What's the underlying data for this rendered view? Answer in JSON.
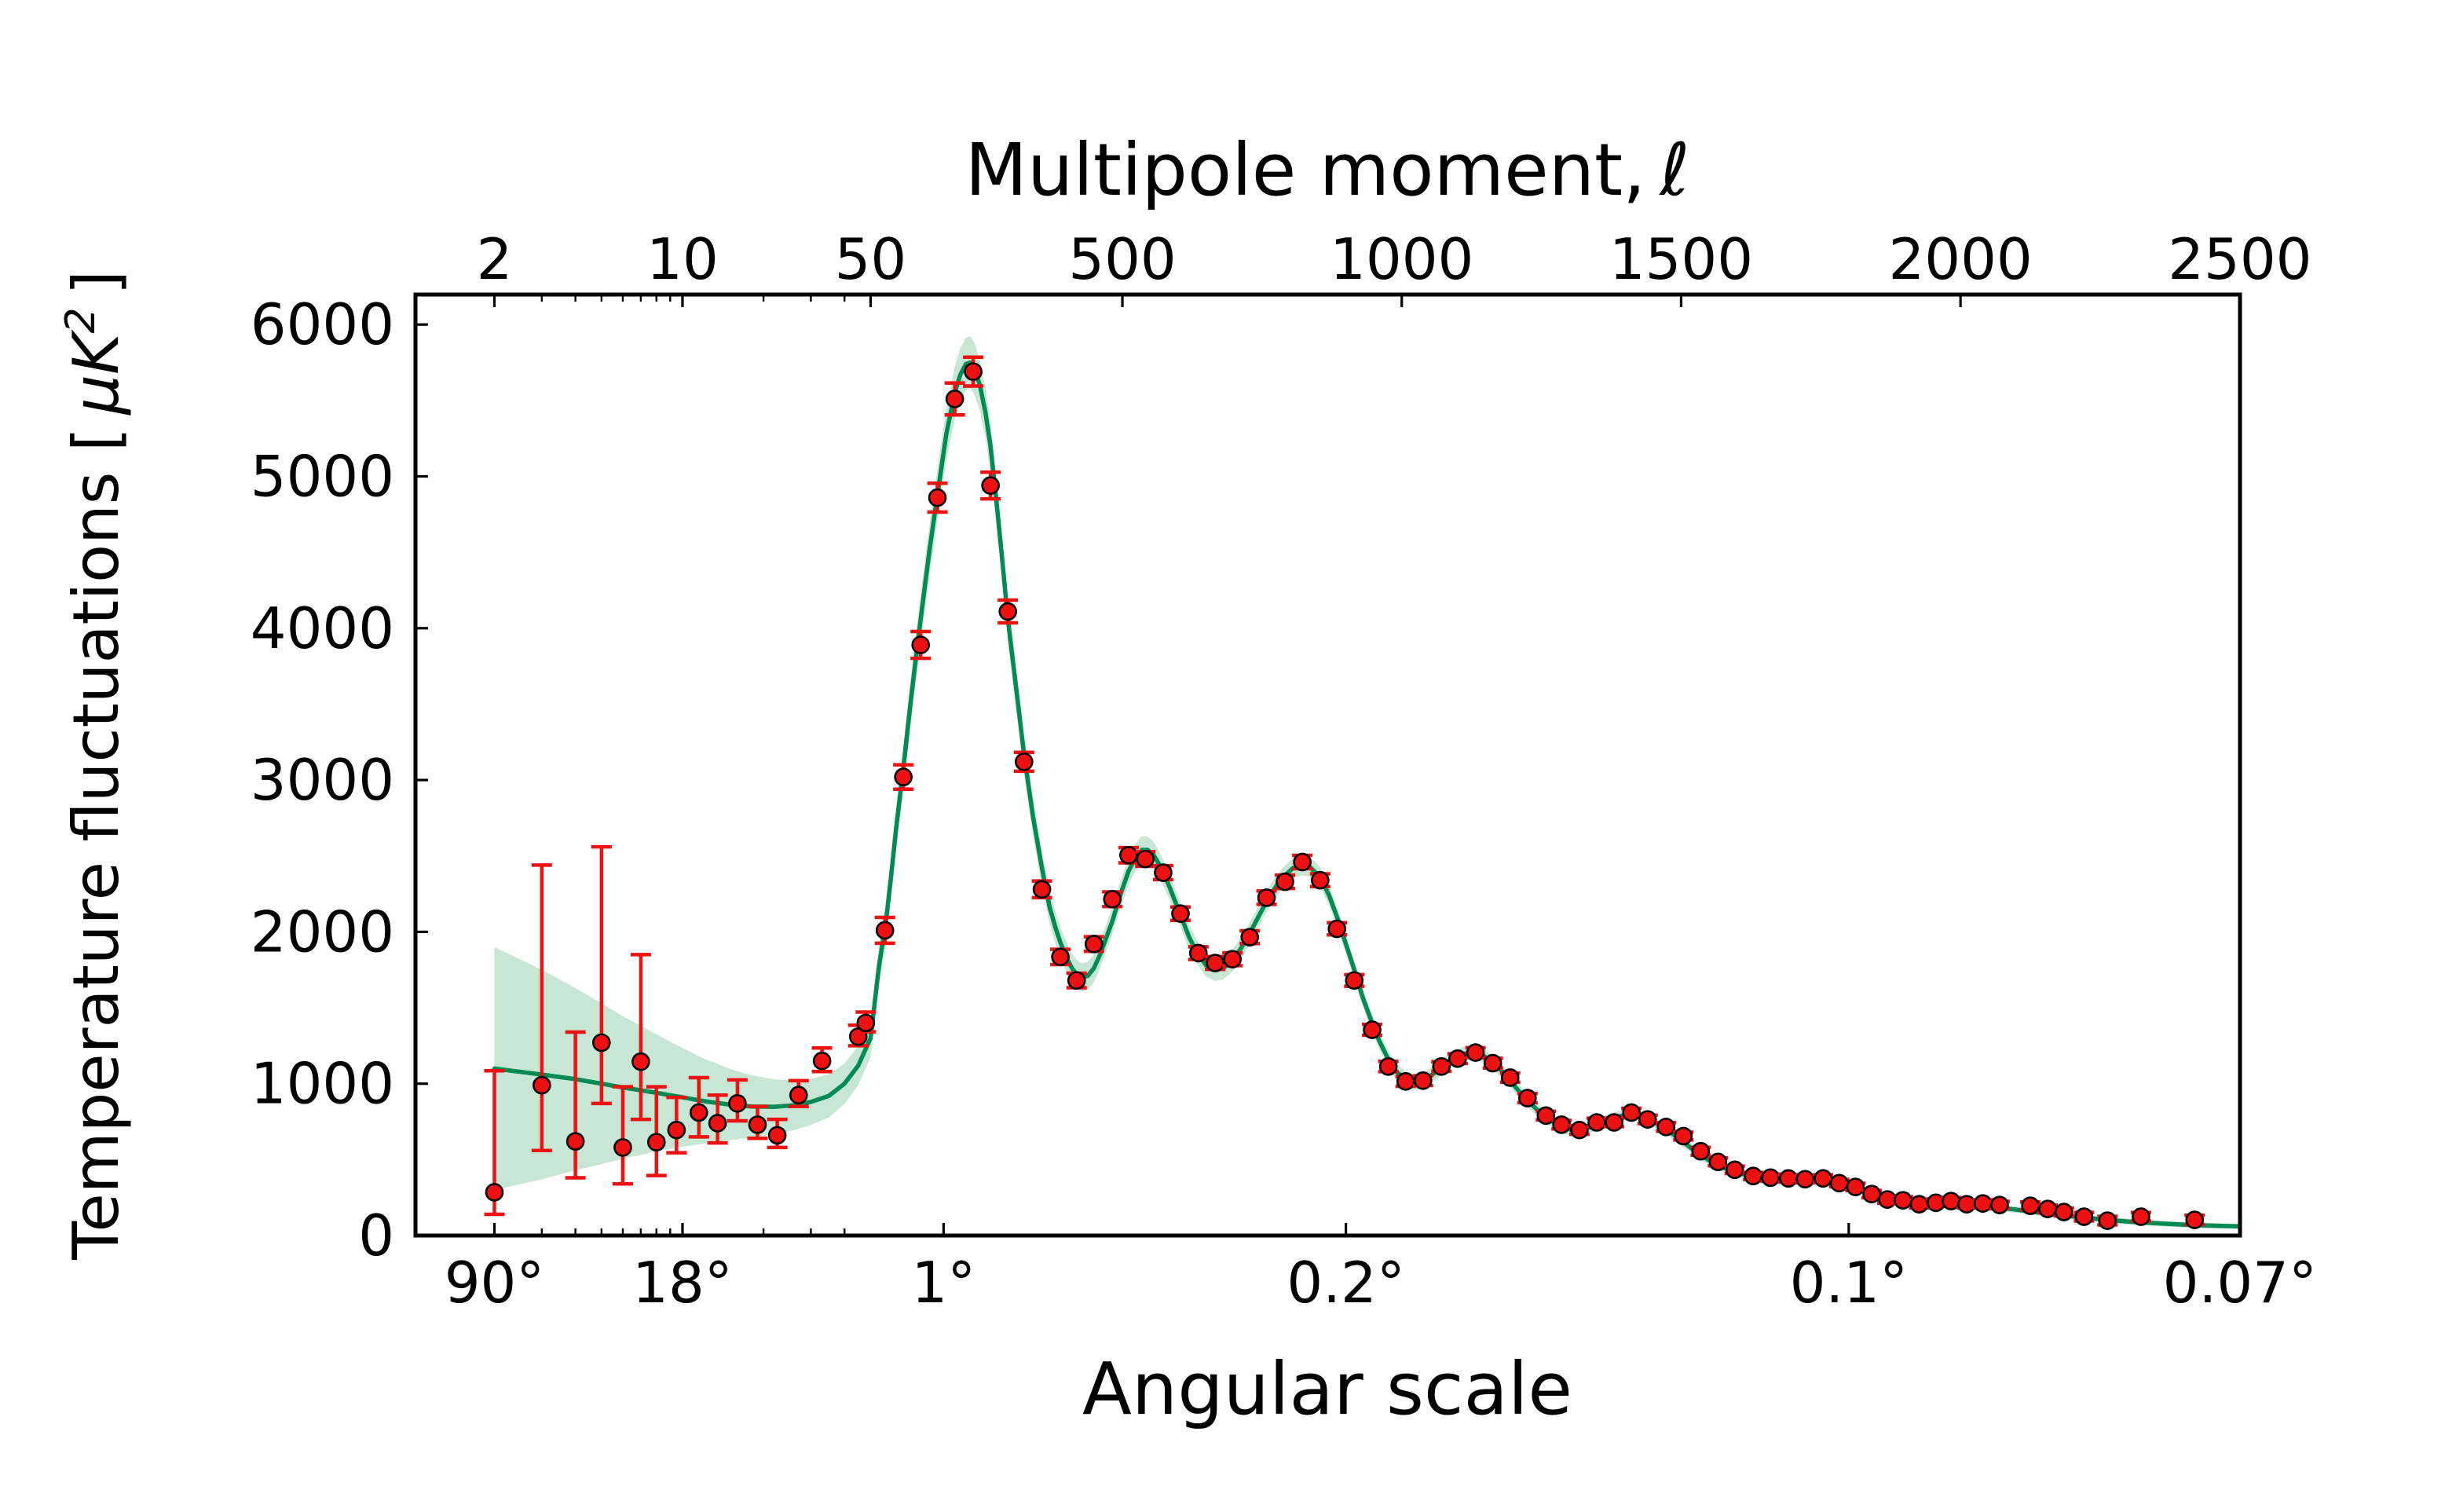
{
  "figure": {
    "background": "#ffffff",
    "top_axis_title_text": "Multipole moment,",
    "top_axis_title_math": "ℓ",
    "bottom_axis_title": "Angular scale",
    "ylabel_parts": {
      "prefix": "Temperature fluctuations [",
      "mu": "μK",
      "sup": "2",
      "suffix": "]"
    }
  },
  "chart_data": {
    "type": "line",
    "title": "Multipole moment, ℓ (top axis) — CMB temperature power spectrum",
    "xlabel": "Angular scale",
    "ylabel": "Temperature fluctuations [ μK² ]",
    "x_scale": "logarithmic from ℓ=2 to ℓ=50, linear from ℓ=50 to ℓ=2500",
    "ylim": [
      0,
      6200
    ],
    "grid": false,
    "legend": "none",
    "y_ticks": [
      0,
      1000,
      2000,
      3000,
      4000,
      5000,
      6000
    ],
    "top_ticks": {
      "values": [
        2,
        10,
        50,
        500,
        1000,
        1500,
        2000,
        2500
      ],
      "labels": [
        "2",
        "10",
        "50",
        "500",
        "1000",
        "1500",
        "2000",
        "2500"
      ]
    },
    "top_minor_ticks": [
      3,
      4,
      5,
      6,
      7,
      8,
      9,
      20,
      30,
      40
    ],
    "bottom_ticks": {
      "values": [
        2,
        10,
        180,
        900,
        1800,
        2500
      ],
      "labels": [
        "90°",
        "18°",
        "1°",
        "0.2°",
        "0.1°",
        "0.07°"
      ]
    },
    "bottom_minor_ticks": [
      3,
      4,
      5,
      6,
      7,
      8,
      9,
      20,
      30,
      40
    ],
    "colors": {
      "data_points": "#ee1111",
      "error_bars": "#ee1111",
      "marker_outline": "#000000",
      "model_curve": "#008a54",
      "uncertainty_band": "#c7e6d4",
      "frame": "#000000"
    },
    "model_curve": [
      [
        2,
        1100
      ],
      [
        3,
        1060
      ],
      [
        4,
        1030
      ],
      [
        5,
        1000
      ],
      [
        6,
        975
      ],
      [
        8,
        940
      ],
      [
        10,
        910
      ],
      [
        12,
        885
      ],
      [
        15,
        862
      ],
      [
        18,
        850
      ],
      [
        22,
        848
      ],
      [
        26,
        858
      ],
      [
        30,
        880
      ],
      [
        35,
        920
      ],
      [
        40,
        1000
      ],
      [
        45,
        1120
      ],
      [
        50,
        1300
      ],
      [
        55,
        1480
      ],
      [
        60,
        1640
      ],
      [
        65,
        1790
      ],
      [
        70,
        1905
      ],
      [
        75,
        2010
      ],
      [
        85,
        2330
      ],
      [
        95,
        2680
      ],
      [
        108,
        3080
      ],
      [
        120,
        3480
      ],
      [
        130,
        3790
      ],
      [
        139,
        4060
      ],
      [
        155,
        4520
      ],
      [
        169,
        4880
      ],
      [
        185,
        5280
      ],
      [
        200,
        5550
      ],
      [
        210,
        5670
      ],
      [
        220,
        5740
      ],
      [
        228,
        5750
      ],
      [
        235,
        5710
      ],
      [
        245,
        5600
      ],
      [
        255,
        5420
      ],
      [
        264,
        5200
      ],
      [
        275,
        4820
      ],
      [
        285,
        4450
      ],
      [
        295,
        4060
      ],
      [
        310,
        3600
      ],
      [
        324,
        3170
      ],
      [
        340,
        2760
      ],
      [
        356,
        2420
      ],
      [
        370,
        2160
      ],
      [
        380,
        2030
      ],
      [
        389,
        1930
      ],
      [
        400,
        1830
      ],
      [
        410,
        1760
      ],
      [
        418,
        1720
      ],
      [
        428,
        1700
      ],
      [
        438,
        1710
      ],
      [
        449,
        1760
      ],
      [
        460,
        1850
      ],
      [
        470,
        1950
      ],
      [
        482,
        2070
      ],
      [
        495,
        2230
      ],
      [
        511,
        2400
      ],
      [
        525,
        2500
      ],
      [
        535,
        2540
      ],
      [
        545,
        2540
      ],
      [
        555,
        2510
      ],
      [
        565,
        2450
      ],
      [
        573,
        2390
      ],
      [
        585,
        2290
      ],
      [
        604,
        2110
      ],
      [
        620,
        1960
      ],
      [
        636,
        1850
      ],
      [
        650,
        1780
      ],
      [
        666,
        1750
      ],
      [
        680,
        1760
      ],
      [
        697,
        1810
      ],
      [
        712,
        1890
      ],
      [
        728,
        1990
      ],
      [
        745,
        2110
      ],
      [
        758,
        2200
      ],
      [
        775,
        2300
      ],
      [
        791,
        2370
      ],
      [
        805,
        2420
      ],
      [
        822,
        2440
      ],
      [
        835,
        2430
      ],
      [
        854,
        2360
      ],
      [
        870,
        2240
      ],
      [
        884,
        2100
      ],
      [
        900,
        1920
      ],
      [
        915,
        1750
      ],
      [
        930,
        1570
      ],
      [
        947,
        1400
      ],
      [
        960,
        1280
      ],
      [
        976,
        1160
      ],
      [
        990,
        1080
      ],
      [
        1007,
        1030
      ],
      [
        1022,
        1010
      ],
      [
        1038,
        1020
      ],
      [
        1055,
        1060
      ],
      [
        1071,
        1110
      ],
      [
        1085,
        1150
      ],
      [
        1100,
        1180
      ],
      [
        1115,
        1200
      ],
      [
        1132,
        1205
      ],
      [
        1148,
        1180
      ],
      [
        1163,
        1140
      ],
      [
        1180,
        1080
      ],
      [
        1194,
        1020
      ],
      [
        1210,
        950
      ],
      [
        1225,
        890
      ],
      [
        1242,
        830
      ],
      [
        1258,
        780
      ],
      [
        1272,
        745
      ],
      [
        1286,
        715
      ],
      [
        1300,
        700
      ],
      [
        1315,
        695
      ],
      [
        1330,
        705
      ],
      [
        1349,
        730
      ],
      [
        1365,
        755
      ],
      [
        1380,
        775
      ],
      [
        1395,
        790
      ],
      [
        1411,
        795
      ],
      [
        1425,
        790
      ],
      [
        1440,
        770
      ],
      [
        1455,
        740
      ],
      [
        1473,
        700
      ],
      [
        1490,
        655
      ],
      [
        1504,
        615
      ],
      [
        1520,
        570
      ],
      [
        1535,
        530
      ],
      [
        1550,
        495
      ],
      [
        1566,
        463
      ],
      [
        1580,
        440
      ],
      [
        1596,
        420
      ],
      [
        1612,
        403
      ],
      [
        1629,
        390
      ],
      [
        1645,
        382
      ],
      [
        1660,
        378
      ],
      [
        1675,
        376
      ],
      [
        1692,
        376
      ],
      [
        1708,
        377
      ],
      [
        1722,
        377
      ],
      [
        1740,
        373
      ],
      [
        1754,
        366
      ],
      [
        1770,
        355
      ],
      [
        1783,
        343
      ],
      [
        1800,
        325
      ],
      [
        1812,
        312
      ],
      [
        1830,
        290
      ],
      [
        1841,
        278
      ],
      [
        1855,
        262
      ],
      [
        1869,
        248
      ],
      [
        1885,
        233
      ],
      [
        1897,
        225
      ],
      [
        1912,
        215
      ],
      [
        1926,
        210
      ],
      [
        1940,
        208
      ],
      [
        1956,
        209
      ],
      [
        1970,
        212
      ],
      [
        1983,
        213
      ],
      [
        2000,
        211
      ],
      [
        2011,
        208
      ],
      [
        2025,
        203
      ],
      [
        2040,
        197
      ],
      [
        2055,
        191
      ],
      [
        2070,
        184
      ],
      [
        2085,
        177
      ],
      [
        2100,
        170
      ],
      [
        2115,
        163
      ],
      [
        2130,
        156
      ],
      [
        2145,
        149
      ],
      [
        2160,
        143
      ],
      [
        2175,
        136
      ],
      [
        2190,
        130
      ],
      [
        2205,
        124
      ],
      [
        2220,
        118
      ],
      [
        2240,
        111
      ],
      [
        2260,
        104
      ],
      [
        2280,
        98
      ],
      [
        2300,
        92
      ],
      [
        2320,
        87
      ],
      [
        2340,
        83
      ],
      [
        2360,
        79
      ],
      [
        2380,
        75
      ],
      [
        2400,
        72
      ],
      [
        2420,
        69
      ],
      [
        2440,
        66
      ],
      [
        2460,
        64
      ],
      [
        2480,
        62
      ],
      [
        2500,
        60
      ]
    ],
    "band_halfwidth": [
      [
        2,
        800
      ],
      [
        3,
        690
      ],
      [
        4,
        600
      ],
      [
        5,
        530
      ],
      [
        6,
        470
      ],
      [
        7,
        425
      ],
      [
        8,
        385
      ],
      [
        10,
        325
      ],
      [
        12,
        280
      ],
      [
        15,
        235
      ],
      [
        18,
        205
      ],
      [
        22,
        180
      ],
      [
        27,
        160
      ],
      [
        33,
        145
      ],
      [
        40,
        133
      ],
      [
        50,
        126
      ],
      [
        60,
        124
      ],
      [
        75,
        128
      ],
      [
        90,
        138
      ],
      [
        110,
        152
      ],
      [
        140,
        165
      ],
      [
        180,
        172
      ],
      [
        210,
        174
      ],
      [
        230,
        172
      ],
      [
        260,
        162
      ],
      [
        300,
        142
      ],
      [
        350,
        118
      ],
      [
        400,
        98
      ],
      [
        450,
        90
      ],
      [
        500,
        88
      ],
      [
        550,
        88
      ],
      [
        600,
        80
      ],
      [
        650,
        75
      ],
      [
        700,
        72
      ],
      [
        750,
        70
      ],
      [
        800,
        68
      ],
      [
        850,
        66
      ],
      [
        900,
        62
      ],
      [
        950,
        57
      ],
      [
        1000,
        53
      ],
      [
        1100,
        49
      ],
      [
        1200,
        44
      ],
      [
        1300,
        39
      ],
      [
        1400,
        37
      ],
      [
        1500,
        33
      ],
      [
        1600,
        29
      ],
      [
        1700,
        27
      ],
      [
        1800,
        25
      ],
      [
        1900,
        23
      ],
      [
        2000,
        22
      ],
      [
        2100,
        21
      ],
      [
        2200,
        20
      ],
      [
        2300,
        19
      ],
      [
        2400,
        18
      ],
      [
        2500,
        17
      ]
    ],
    "points": [
      [
        2,
        285,
        800,
        145
      ],
      [
        3,
        990,
        1450,
        430
      ],
      [
        4,
        620,
        720,
        240
      ],
      [
        5,
        1270,
        1290,
        400
      ],
      [
        6,
        580,
        400,
        240
      ],
      [
        7,
        1145,
        705,
        380
      ],
      [
        8,
        615,
        365,
        220
      ],
      [
        9.5,
        695,
        215,
        150
      ],
      [
        11.5,
        810,
        230,
        160
      ],
      [
        13.5,
        740,
        185,
        130
      ],
      [
        16,
        870,
        155,
        115
      ],
      [
        19,
        730,
        120,
        90
      ],
      [
        22.5,
        660,
        105,
        80
      ],
      [
        27,
        925,
        95,
        75
      ],
      [
        33,
        1150,
        85,
        70
      ],
      [
        45,
        1310,
        75,
        60
      ],
      [
        48,
        1400,
        72,
        58
      ],
      [
        75,
        2010,
        85,
        85
      ],
      [
        108,
        3020,
        80,
        80
      ],
      [
        139,
        3890,
        88,
        88
      ],
      [
        169,
        4860,
        95,
        95
      ],
      [
        200,
        5510,
        105,
        105
      ],
      [
        233,
        5690,
        95,
        95
      ],
      [
        264,
        4940,
        88,
        88
      ],
      [
        295,
        4110,
        75,
        75
      ],
      [
        324,
        3120,
        62,
        62
      ],
      [
        356,
        2280,
        55,
        55
      ],
      [
        389,
        1835,
        50,
        50
      ],
      [
        418,
        1680,
        48,
        48
      ],
      [
        449,
        1920,
        48,
        48
      ],
      [
        482,
        2215,
        48,
        48
      ],
      [
        511,
        2505,
        50,
        50
      ],
      [
        541,
        2480,
        48,
        48
      ],
      [
        573,
        2390,
        46,
        46
      ],
      [
        604,
        2120,
        44,
        44
      ],
      [
        636,
        1860,
        42,
        42
      ],
      [
        666,
        1795,
        42,
        42
      ],
      [
        697,
        1820,
        42,
        42
      ],
      [
        728,
        1965,
        42,
        42
      ],
      [
        758,
        2225,
        44,
        44
      ],
      [
        791,
        2330,
        44,
        44
      ],
      [
        822,
        2460,
        44,
        44
      ],
      [
        854,
        2340,
        42,
        42
      ],
      [
        884,
        2020,
        40,
        40
      ],
      [
        915,
        1680,
        38,
        38
      ],
      [
        947,
        1355,
        36,
        36
      ],
      [
        976,
        1113,
        34,
        34
      ],
      [
        1007,
        1015,
        32,
        32
      ],
      [
        1038,
        1020,
        32,
        32
      ],
      [
        1071,
        1113,
        32,
        32
      ],
      [
        1100,
        1165,
        32,
        32
      ],
      [
        1132,
        1205,
        32,
        32
      ],
      [
        1163,
        1135,
        32,
        32
      ],
      [
        1194,
        1040,
        30,
        30
      ],
      [
        1225,
        905,
        30,
        30
      ],
      [
        1258,
        790,
        28,
        28
      ],
      [
        1286,
        730,
        28,
        28
      ],
      [
        1318,
        695,
        28,
        28
      ],
      [
        1349,
        745,
        28,
        28
      ],
      [
        1380,
        745,
        28,
        28
      ],
      [
        1411,
        810,
        28,
        28
      ],
      [
        1440,
        765,
        28,
        28
      ],
      [
        1473,
        715,
        28,
        28
      ],
      [
        1504,
        655,
        26,
        26
      ],
      [
        1535,
        555,
        26,
        26
      ],
      [
        1566,
        485,
        26,
        26
      ],
      [
        1596,
        433,
        24,
        24
      ],
      [
        1629,
        392,
        24,
        24
      ],
      [
        1660,
        381,
        24,
        24
      ],
      [
        1692,
        376,
        24,
        24
      ],
      [
        1722,
        371,
        24,
        24
      ],
      [
        1754,
        376,
        24,
        24
      ],
      [
        1783,
        345,
        24,
        24
      ],
      [
        1812,
        320,
        24,
        24
      ],
      [
        1841,
        273,
        24,
        24
      ],
      [
        1869,
        237,
        24,
        24
      ],
      [
        1897,
        232,
        24,
        24
      ],
      [
        1926,
        206,
        24,
        24
      ],
      [
        1956,
        216,
        24,
        24
      ],
      [
        1983,
        227,
        24,
        24
      ],
      [
        2011,
        206,
        24,
        24
      ],
      [
        2040,
        211,
        24,
        24
      ],
      [
        2070,
        201,
        24,
        24
      ],
      [
        2125,
        196,
        26,
        26
      ],
      [
        2156,
        175,
        26,
        26
      ],
      [
        2185,
        155,
        26,
        26
      ],
      [
        2221,
        124,
        28,
        28
      ],
      [
        2263,
        98,
        28,
        28
      ],
      [
        2323,
        124,
        28,
        28
      ],
      [
        2419,
        103,
        30,
        30
      ]
    ]
  }
}
